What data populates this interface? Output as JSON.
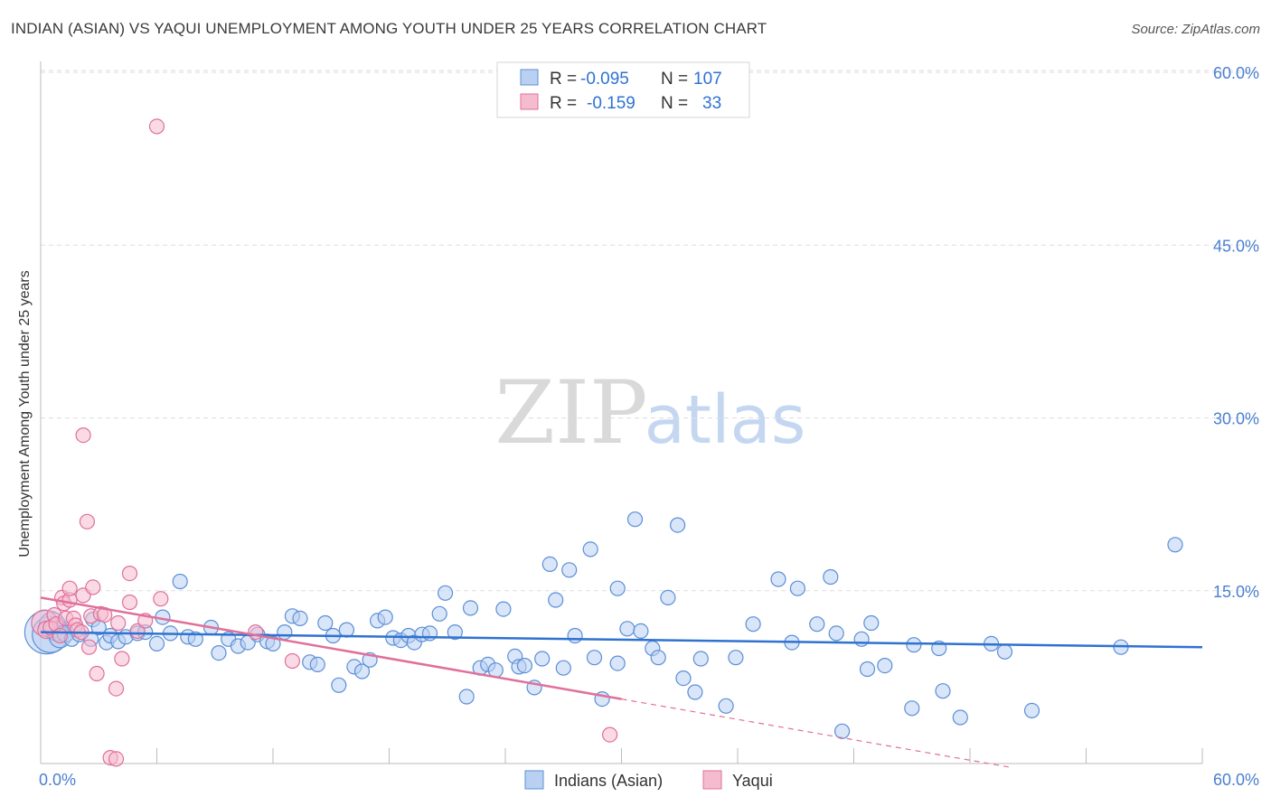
{
  "title": "INDIAN (ASIAN) VS YAQUI UNEMPLOYMENT AMONG YOUTH UNDER 25 YEARS CORRELATION CHART",
  "source": "Source: ZipAtlas.com",
  "watermark": {
    "zip": "ZIP",
    "atlas": "atlas"
  },
  "colors": {
    "blue": "#5b8fd6",
    "blue_fill": "#b9d0f2",
    "blue_line": "#2f72d0",
    "pink": "#e0709a",
    "pink_fill": "#f5bcd0",
    "pink_line": "#e0709a",
    "axis_text": "#4a7fd0",
    "grid": "#dddddd"
  },
  "legend": {
    "rows": [
      {
        "r_label": "R =",
        "r_value": "-0.095",
        "n_label": "N =",
        "n_value": "107"
      },
      {
        "r_label": "R =",
        "r_value": "-0.159",
        "n_label": "N =",
        "n_value": "33"
      }
    ]
  },
  "chart_data": {
    "type": "scatter",
    "title": "INDIAN (ASIAN) VS YAQUI UNEMPLOYMENT AMONG YOUTH UNDER 25 YEARS CORRELATION CHART",
    "xlabel": "",
    "ylabel": "Unemployment Among Youth under 25 years",
    "xlim": [
      0,
      60
    ],
    "ylim": [
      0,
      60
    ],
    "x_tick_labels": [
      "0.0%",
      "60.0%"
    ],
    "y_tick_labels": [
      "15.0%",
      "30.0%",
      "45.0%",
      "60.0%"
    ],
    "y_ticks": [
      15,
      30,
      45,
      60
    ],
    "bottom_legend": [
      "Indians (Asian)",
      "Yaqui"
    ],
    "series": [
      {
        "name": "Indians (Asian)",
        "r": -0.095,
        "n": 107,
        "trend": {
          "x": [
            0,
            60
          ],
          "y": [
            11.4,
            10.1
          ]
        },
        "points": [
          [
            0.3,
            11.4,
            3
          ],
          [
            0.5,
            11.2,
            2.5
          ],
          [
            0.6,
            12.0,
            1.8
          ],
          [
            0.8,
            11.6,
            1.5
          ],
          [
            1.0,
            11.0,
            1.5
          ],
          [
            1.3,
            11.3,
            1.2
          ],
          [
            1.6,
            10.8,
            1
          ],
          [
            2.0,
            11.2,
            1
          ],
          [
            2.6,
            10.8,
            1
          ],
          [
            2.7,
            12.5,
            1
          ],
          [
            3.0,
            11.8,
            1
          ],
          [
            3.4,
            10.5,
            1
          ],
          [
            3.6,
            11.1,
            1
          ],
          [
            4.0,
            10.6,
            1
          ],
          [
            4.4,
            11.0,
            1
          ],
          [
            5.0,
            11.3,
            1
          ],
          [
            5.4,
            11.4,
            1
          ],
          [
            6.0,
            10.4,
            1
          ],
          [
            6.3,
            12.7,
            1
          ],
          [
            6.7,
            11.3,
            1
          ],
          [
            7.2,
            15.8,
            1
          ],
          [
            7.6,
            11.0,
            1
          ],
          [
            8.0,
            10.8,
            1
          ],
          [
            8.8,
            11.8,
            1
          ],
          [
            9.2,
            9.6,
            1
          ],
          [
            9.7,
            10.8,
            1
          ],
          [
            10.2,
            10.2,
            1
          ],
          [
            10.7,
            10.5,
            1
          ],
          [
            11.2,
            11.2,
            1
          ],
          [
            11.7,
            10.6,
            1
          ],
          [
            12.0,
            10.4,
            1
          ],
          [
            12.6,
            11.4,
            1
          ],
          [
            13.0,
            12.8,
            1
          ],
          [
            13.4,
            12.6,
            1
          ],
          [
            13.9,
            8.8,
            1
          ],
          [
            14.3,
            8.6,
            1
          ],
          [
            14.7,
            12.2,
            1
          ],
          [
            15.1,
            11.1,
            1
          ],
          [
            15.4,
            6.8,
            1
          ],
          [
            15.8,
            11.6,
            1
          ],
          [
            16.2,
            8.4,
            1
          ],
          [
            16.6,
            8.0,
            1
          ],
          [
            17.0,
            9.0,
            1
          ],
          [
            17.4,
            12.4,
            1
          ],
          [
            17.8,
            12.7,
            1
          ],
          [
            18.2,
            10.9,
            1
          ],
          [
            18.6,
            10.7,
            1
          ],
          [
            19.0,
            11.1,
            1
          ],
          [
            19.3,
            10.5,
            1
          ],
          [
            19.7,
            11.2,
            1
          ],
          [
            20.1,
            11.3,
            1
          ],
          [
            20.6,
            13.0,
            1
          ],
          [
            20.9,
            14.8,
            1
          ],
          [
            21.4,
            11.4,
            1
          ],
          [
            22.0,
            5.8,
            1
          ],
          [
            22.2,
            13.5,
            1
          ],
          [
            22.7,
            8.3,
            1
          ],
          [
            23.1,
            8.6,
            1
          ],
          [
            23.5,
            8.1,
            1
          ],
          [
            23.9,
            13.4,
            1
          ],
          [
            24.5,
            9.3,
            1
          ],
          [
            24.7,
            8.4,
            1
          ],
          [
            25.0,
            8.5,
            1
          ],
          [
            25.5,
            6.6,
            1
          ],
          [
            25.9,
            9.1,
            1
          ],
          [
            26.3,
            17.3,
            1
          ],
          [
            26.6,
            14.2,
            1
          ],
          [
            27.0,
            8.3,
            1
          ],
          [
            27.3,
            16.8,
            1
          ],
          [
            27.6,
            11.1,
            1
          ],
          [
            28.4,
            18.6,
            1
          ],
          [
            28.6,
            9.2,
            1
          ],
          [
            29.0,
            5.6,
            1
          ],
          [
            29.8,
            8.7,
            1
          ],
          [
            29.8,
            15.2,
            1
          ],
          [
            30.3,
            11.7,
            1
          ],
          [
            30.7,
            21.2,
            1
          ],
          [
            31.0,
            11.5,
            1
          ],
          [
            31.6,
            10.0,
            1
          ],
          [
            31.9,
            9.2,
            1
          ],
          [
            32.4,
            14.4,
            1
          ],
          [
            32.9,
            20.7,
            1
          ],
          [
            33.2,
            7.4,
            1
          ],
          [
            33.8,
            6.2,
            1
          ],
          [
            34.1,
            9.1,
            1
          ],
          [
            35.4,
            5.0,
            1
          ],
          [
            35.9,
            9.2,
            1
          ],
          [
            36.8,
            12.1,
            1
          ],
          [
            38.1,
            16.0,
            1
          ],
          [
            38.8,
            10.5,
            1
          ],
          [
            39.1,
            15.2,
            1
          ],
          [
            40.1,
            12.1,
            1
          ],
          [
            40.8,
            16.2,
            1
          ],
          [
            41.1,
            11.3,
            1
          ],
          [
            41.4,
            2.8,
            1
          ],
          [
            42.4,
            10.8,
            1
          ],
          [
            42.7,
            8.2,
            1
          ],
          [
            42.9,
            12.2,
            1
          ],
          [
            43.6,
            8.5,
            1
          ],
          [
            45.0,
            4.8,
            1
          ],
          [
            45.1,
            10.3,
            1
          ],
          [
            46.4,
            10.0,
            1
          ],
          [
            46.6,
            6.3,
            1
          ],
          [
            47.5,
            4.0,
            1
          ],
          [
            49.1,
            10.4,
            1
          ],
          [
            49.8,
            9.7,
            1
          ],
          [
            51.2,
            4.6,
            1
          ],
          [
            55.8,
            10.1,
            1
          ],
          [
            58.6,
            19.0,
            1
          ]
        ]
      },
      {
        "name": "Yaqui",
        "r": -0.159,
        "n": 33,
        "trend": {
          "x": [
            0,
            30
          ],
          "y": [
            14.4,
            5.6
          ]
        },
        "trend_dashed": {
          "x": [
            30,
            50
          ],
          "y": [
            5.6,
            -0.3
          ]
        },
        "points": [
          [
            0.2,
            12.2,
            1.8
          ],
          [
            0.3,
            11.6,
            1.2
          ],
          [
            0.5,
            11.8,
            1
          ],
          [
            0.7,
            12.9,
            1
          ],
          [
            0.8,
            12.1,
            1
          ],
          [
            1.0,
            11.1,
            1
          ],
          [
            1.1,
            14.4,
            1
          ],
          [
            1.2,
            13.9,
            1
          ],
          [
            1.3,
            12.6,
            1
          ],
          [
            1.5,
            14.2,
            1
          ],
          [
            1.5,
            15.2,
            1
          ],
          [
            1.7,
            12.6,
            1
          ],
          [
            1.8,
            12.0,
            1
          ],
          [
            1.9,
            11.6,
            1
          ],
          [
            2.1,
            11.4,
            1
          ],
          [
            2.2,
            14.6,
            1
          ],
          [
            2.2,
            28.5,
            1
          ],
          [
            2.4,
            21.0,
            1
          ],
          [
            2.5,
            10.1,
            1
          ],
          [
            2.6,
            12.8,
            1
          ],
          [
            2.7,
            15.3,
            1
          ],
          [
            2.9,
            7.8,
            1
          ],
          [
            3.1,
            13.0,
            1
          ],
          [
            3.3,
            12.9,
            1
          ],
          [
            3.6,
            0.5,
            1
          ],
          [
            3.9,
            0.4,
            1
          ],
          [
            3.9,
            6.5,
            1
          ],
          [
            4.0,
            12.2,
            1
          ],
          [
            4.2,
            9.1,
            1
          ],
          [
            4.6,
            14.0,
            1
          ],
          [
            4.6,
            16.5,
            1
          ],
          [
            5.0,
            11.5,
            1
          ],
          [
            5.4,
            12.4,
            1
          ],
          [
            6.2,
            14.3,
            1
          ],
          [
            6.0,
            55.3,
            1
          ],
          [
            11.1,
            11.4,
            1
          ],
          [
            13.0,
            8.9,
            1
          ],
          [
            29.4,
            2.5,
            1
          ]
        ]
      }
    ]
  }
}
